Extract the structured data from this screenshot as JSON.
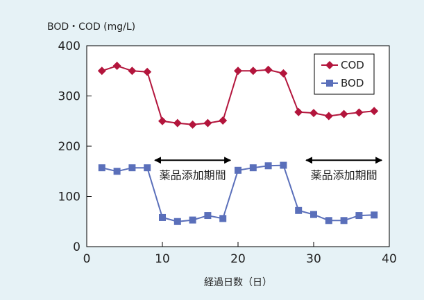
{
  "chart_data": {
    "type": "line",
    "ylabel": "BOD・COD (mg/L)",
    "xlabel": "経過日数（日）",
    "xlim": [
      0,
      40
    ],
    "ylim": [
      0,
      400
    ],
    "x_ticks": [
      0,
      10,
      20,
      30,
      40
    ],
    "y_ticks": [
      0,
      100,
      200,
      300,
      400
    ],
    "grid": false,
    "legend_position": "top-right",
    "series": [
      {
        "name": "COD",
        "color": "#b3153c",
        "marker": "diamond",
        "x": [
          2,
          4,
          6,
          8,
          10,
          12,
          14,
          16,
          18,
          20,
          22,
          24,
          26,
          28,
          30,
          32,
          34,
          36,
          38
        ],
        "y": [
          350,
          360,
          350,
          348,
          250,
          246,
          243,
          246,
          251,
          350,
          350,
          352,
          345,
          268,
          266,
          260,
          264,
          267,
          270
        ]
      },
      {
        "name": "BOD",
        "color": "#5a6fba",
        "marker": "square",
        "x": [
          2,
          4,
          6,
          8,
          10,
          12,
          14,
          16,
          18,
          20,
          22,
          24,
          26,
          28,
          30,
          32,
          34,
          36,
          38
        ],
        "y": [
          157,
          150,
          157,
          157,
          58,
          50,
          53,
          62,
          56,
          152,
          157,
          161,
          162,
          72,
          64,
          52,
          52,
          62,
          63
        ]
      }
    ],
    "annotations": [
      {
        "label": "薬品添加期間",
        "x_start": 9,
        "x_end": 19,
        "arrow_y": 172
      },
      {
        "label": "薬品添加期間",
        "x_start": 29,
        "x_end": 39,
        "arrow_y": 172
      }
    ]
  }
}
